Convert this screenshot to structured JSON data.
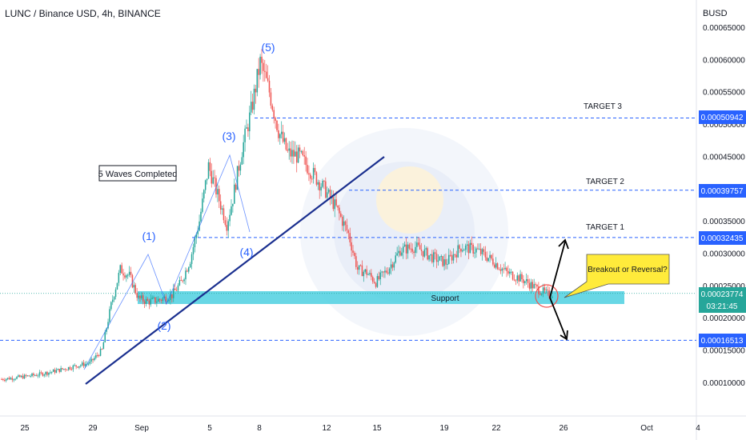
{
  "header": {
    "title": "LUNC / Binance USD, 4h, BINANCE"
  },
  "axis": {
    "currency": "BUSD",
    "price_ticks": [
      "0.00065000",
      "0.00060000",
      "0.00055000",
      "0.00050000",
      "0.00045000",
      "0.00040000",
      "0.00035000",
      "0.00030000",
      "0.00025000",
      "0.00020000",
      "0.00015000",
      "0.00010000"
    ],
    "date_ticks": [
      "25",
      "29",
      "Sep",
      "5",
      "8",
      "12",
      "15",
      "19",
      "22",
      "26",
      "Oct",
      "4"
    ]
  },
  "price_tags": {
    "target3": "0.00050942",
    "target2": "0.00039757",
    "target1": "0.00032435",
    "current": "0.00023774",
    "countdown": "03:21:45",
    "lower": "0.00016513"
  },
  "labels": {
    "target3": "TARGET 3",
    "target2": "TARGET 2",
    "target1": "TARGET 1",
    "waves_completed": "5 Waves Completed",
    "breakout": "Breakout or Reversal?",
    "support": "Support",
    "wave1": "(1)",
    "wave2": "(2)",
    "wave3": "(3)",
    "wave4": "(4)",
    "wave5": "(5)"
  },
  "colors": {
    "up": "#26a69a",
    "down": "#ef5350",
    "level_line": "#2962ff",
    "support_zone": "#4dd0e1",
    "trendline": "#1a2f8f",
    "callout": "#ffeb3b",
    "current_tag": "#26a69a",
    "wave_label": "#2962ff"
  },
  "chart_data": {
    "type": "candlestick",
    "symbol": "LUNC / Binance USD",
    "interval": "4h",
    "exchange": "BINANCE",
    "ylim": [
      5e-05,
      0.00067
    ],
    "y_ticks": [
      0.00065,
      0.0006,
      0.00055,
      0.0005,
      0.00045,
      0.0004,
      0.00035,
      0.0003,
      0.00025,
      0.0002,
      0.00015,
      0.0001
    ],
    "x_tick_labels": [
      "25",
      "29",
      "Sep",
      "5",
      "8",
      "12",
      "15",
      "19",
      "22",
      "26",
      "Oct",
      "4"
    ],
    "horizontal_levels": [
      {
        "label": "TARGET 3",
        "value": 0.00050942
      },
      {
        "label": "TARGET 2",
        "value": 0.00039757
      },
      {
        "label": "TARGET 1",
        "value": 0.00032435
      },
      {
        "label": "",
        "value": 0.00016513
      }
    ],
    "support_zone": {
      "label": "Support",
      "from": 0.00021,
      "to": 0.000245
    },
    "last_price": 0.00023774,
    "close_path": [
      [
        0,
        0.000105
      ],
      [
        12,
        0.000108
      ],
      [
        24,
        0.000112
      ],
      [
        36,
        0.000118
      ],
      [
        48,
        0.000125
      ],
      [
        58,
        0.00013
      ],
      [
        66,
        0.00015
      ],
      [
        72,
        0.00022
      ],
      [
        78,
        0.000275
      ],
      [
        84,
        0.000265
      ],
      [
        90,
        0.00023
      ],
      [
        96,
        0.000225
      ],
      [
        104,
        0.000228
      ],
      [
        112,
        0.000235
      ],
      [
        118,
        0.000255
      ],
      [
        124,
        0.00029
      ],
      [
        130,
        0.00035
      ],
      [
        136,
        0.000435
      ],
      [
        142,
        0.00039
      ],
      [
        148,
        0.000345
      ],
      [
        152,
        0.000385
      ],
      [
        158,
        0.00046
      ],
      [
        164,
        0.00052
      ],
      [
        170,
        0.000595
      ],
      [
        176,
        0.00055
      ],
      [
        182,
        0.00049
      ],
      [
        188,
        0.000455
      ],
      [
        196,
        0.00045
      ],
      [
        204,
        0.000425
      ],
      [
        212,
        0.0004
      ],
      [
        220,
        0.00037
      ],
      [
        228,
        0.00033
      ],
      [
        234,
        0.000275
      ],
      [
        240,
        0.00027
      ],
      [
        246,
        0.000255
      ],
      [
        254,
        0.000275
      ],
      [
        262,
        0.000305
      ],
      [
        272,
        0.00031
      ],
      [
        282,
        0.000295
      ],
      [
        292,
        0.000285
      ],
      [
        302,
        0.00031
      ],
      [
        312,
        0.000305
      ],
      [
        322,
        0.00029
      ],
      [
        332,
        0.00027
      ],
      [
        342,
        0.00026
      ],
      [
        352,
        0.000245
      ],
      [
        360,
        0.000235
      ],
      [
        362,
        0.0002377
      ]
    ]
  }
}
